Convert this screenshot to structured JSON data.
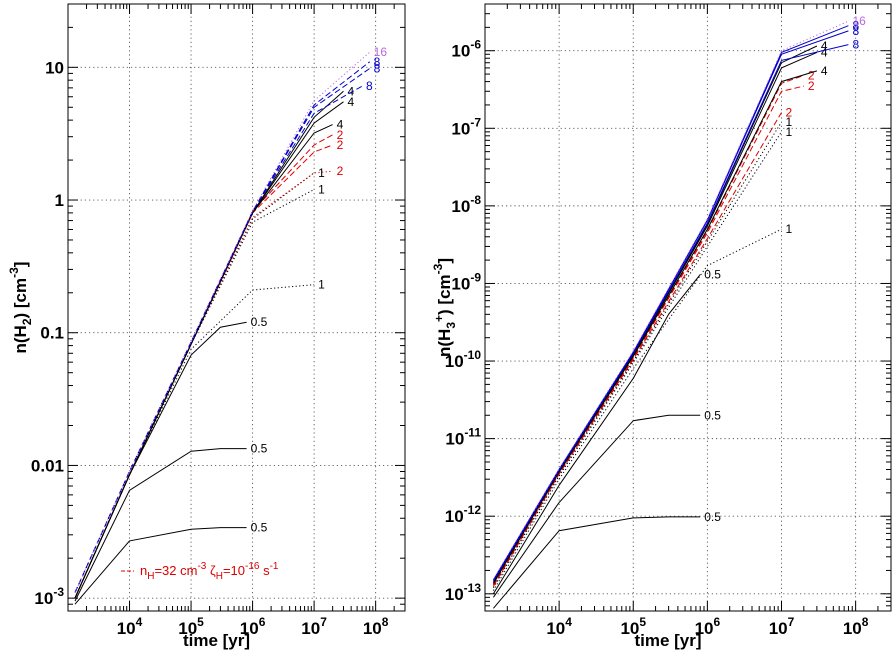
{
  "chart_data": [
    {
      "type": "line",
      "xlabel": "time [yr]",
      "ylabel": "n(H2) [cm-3]",
      "ylabel_parts": {
        "pre": "n(H",
        "sub": "2",
        "post": ") [cm",
        "sup": "-3",
        "end": "]"
      },
      "xscale": "log",
      "yscale": "log",
      "xlim": [
        1000,
        300000000
      ],
      "ylim": [
        0.0008,
        30
      ],
      "grid": true,
      "x_ticks": [
        {
          "base": "10",
          "exp": "4",
          "value": 10000
        },
        {
          "base": "10",
          "exp": "5",
          "value": 100000
        },
        {
          "base": "10",
          "exp": "6",
          "value": 1000000
        },
        {
          "base": "10",
          "exp": "7",
          "value": 10000000
        },
        {
          "base": "10",
          "exp": "8",
          "value": 100000000
        }
      ],
      "y_ticks": [
        {
          "label": "10",
          "value": 10
        },
        {
          "label": "1",
          "value": 1
        },
        {
          "label": "0.1",
          "value": 0.1
        },
        {
          "label": "0.01",
          "value": 0.01
        },
        {
          "base": "10",
          "exp": "-3",
          "value": 0.001
        }
      ],
      "annotation": {
        "pre": "n",
        "sub1": "H",
        "mid": "=32 cm",
        "sup1": "-3",
        "zeta": " ζ",
        "sub2": "H",
        "mid2": "=10",
        "sup2": "-16",
        "end": " s",
        "sup3": "-1",
        "color": "#dd0000"
      },
      "series": [
        {
          "label": "0.5",
          "label_color": "#000000",
          "color": "#000000",
          "style": "solid",
          "x": [
            1300,
            10000,
            100000,
            300000,
            800000
          ],
          "y": [
            0.0009,
            0.0027,
            0.0033,
            0.0034,
            0.0034
          ]
        },
        {
          "label": "0.5",
          "label_color": "#000000",
          "color": "#000000",
          "style": "solid",
          "x": [
            1300,
            10000,
            100000,
            300000,
            800000
          ],
          "y": [
            0.00095,
            0.0065,
            0.0128,
            0.0134,
            0.0134
          ]
        },
        {
          "label": "0.5",
          "label_color": "#000000",
          "color": "#000000",
          "style": "solid",
          "x": [
            1300,
            10000,
            100000,
            300000,
            800000
          ],
          "y": [
            0.001,
            0.0085,
            0.068,
            0.11,
            0.12
          ]
        },
        {
          "label": "1",
          "label_color": "#000000",
          "color": "#000000",
          "style": "dotted",
          "x": [
            1300,
            10000,
            100000,
            1000000,
            10000000
          ],
          "y": [
            0.001,
            0.0085,
            0.075,
            0.21,
            0.23
          ]
        },
        {
          "label": "1",
          "label_color": "#000000",
          "color": "#000000",
          "style": "dotted",
          "x": [
            1300,
            10000,
            100000,
            1000000,
            10000000
          ],
          "y": [
            0.001,
            0.0085,
            0.082,
            0.68,
            1.2
          ]
        },
        {
          "label": "1",
          "label_color": "#000000",
          "color": "#000000",
          "style": "dotted",
          "x": [
            1300,
            10000,
            100000,
            1000000,
            10000000
          ],
          "y": [
            0.001,
            0.0085,
            0.082,
            0.72,
            1.6
          ]
        },
        {
          "label": "2",
          "label_color": "#dd0000",
          "color": "#dd0000",
          "style": "dotted",
          "x": [
            1300,
            10000,
            100000,
            1000000,
            10000000,
            20000000
          ],
          "y": [
            0.001,
            0.0085,
            0.082,
            0.74,
            1.6,
            1.65
          ]
        },
        {
          "label": "2",
          "label_color": "#dd0000",
          "color": "#dd0000",
          "style": "dashed",
          "x": [
            1300,
            10000,
            100000,
            1000000,
            10000000,
            20000000
          ],
          "y": [
            0.001,
            0.0085,
            0.082,
            0.8,
            2.3,
            2.6
          ]
        },
        {
          "label": "2",
          "label_color": "#dd0000",
          "color": "#dd0000",
          "style": "dashed",
          "x": [
            1300,
            10000,
            100000,
            1000000,
            10000000,
            20000000
          ],
          "y": [
            0.001,
            0.0085,
            0.082,
            0.82,
            2.6,
            3.1
          ]
        },
        {
          "label": "4",
          "label_color": "#000000",
          "color": "#000000",
          "style": "solid",
          "x": [
            1300,
            10000,
            100000,
            1000000,
            10000000,
            20000000
          ],
          "y": [
            0.001,
            0.0085,
            0.082,
            0.8,
            3.2,
            3.7
          ]
        },
        {
          "label": "4",
          "label_color": "#000000",
          "color": "#000000",
          "style": "solid",
          "x": [
            1300,
            10000,
            100000,
            1000000,
            10000000,
            30000000
          ],
          "y": [
            0.001,
            0.0085,
            0.082,
            0.8,
            3.8,
            5.5
          ]
        },
        {
          "label": "4",
          "label_color": "#000000",
          "color": "#000000",
          "style": "solid",
          "x": [
            1300,
            10000,
            100000,
            1000000,
            10000000,
            30000000
          ],
          "y": [
            0.001,
            0.0085,
            0.082,
            0.8,
            4.2,
            6.6
          ]
        },
        {
          "label": "8",
          "label_color": "#0000cc",
          "color": "#0000cc",
          "style": "dashed",
          "x": [
            1300,
            10000,
            100000,
            1000000,
            10000000,
            60000000
          ],
          "y": [
            0.0011,
            0.009,
            0.085,
            0.82,
            4.5,
            7.2
          ]
        },
        {
          "label": "8",
          "label_color": "#0000cc",
          "color": "#0000cc",
          "style": "dashed",
          "x": [
            1300,
            10000,
            100000,
            1000000,
            10000000,
            80000000
          ],
          "y": [
            0.0011,
            0.009,
            0.085,
            0.82,
            5.0,
            9.8
          ]
        },
        {
          "label": "8",
          "label_color": "#0000cc",
          "color": "#0000cc",
          "style": "dashed",
          "x": [
            1300,
            10000,
            100000,
            1000000,
            10000000,
            80000000
          ],
          "y": [
            0.0011,
            0.009,
            0.085,
            0.82,
            5.2,
            11
          ]
        },
        {
          "label": "16",
          "label_color": "#bb66dd",
          "color": "#bb66dd",
          "style": "dotted",
          "x": [
            1300,
            10000,
            100000,
            1000000,
            10000000,
            80000000
          ],
          "y": [
            0.0011,
            0.009,
            0.086,
            0.83,
            5.6,
            13
          ]
        }
      ]
    },
    {
      "type": "line",
      "xlabel": "time [yr]",
      "ylabel": "n(H3+) [cm-3]",
      "ylabel_parts": {
        "pre": "n(H",
        "sub": "3",
        "sup0": "+",
        "post": ") [cm",
        "sup": "-3",
        "end": "]"
      },
      "xscale": "log",
      "yscale": "log",
      "xlim": [
        1000,
        300000000
      ],
      "ylim": [
        6e-14,
        4e-06
      ],
      "grid": true,
      "x_ticks": [
        {
          "base": "10",
          "exp": "4",
          "value": 10000
        },
        {
          "base": "10",
          "exp": "5",
          "value": 100000
        },
        {
          "base": "10",
          "exp": "6",
          "value": 1000000
        },
        {
          "base": "10",
          "exp": "7",
          "value": 10000000
        },
        {
          "base": "10",
          "exp": "8",
          "value": 100000000
        }
      ],
      "y_ticks": [
        {
          "base": "10",
          "exp": "-6",
          "value": 1e-06
        },
        {
          "base": "10",
          "exp": "-7",
          "value": 1e-07
        },
        {
          "base": "10",
          "exp": "-8",
          "value": 1e-08
        },
        {
          "base": "10",
          "exp": "-9",
          "value": 1e-09
        },
        {
          "base": "10",
          "exp": "-10",
          "value": 1e-10
        },
        {
          "base": "10",
          "exp": "-11",
          "value": 1e-11
        },
        {
          "base": "10",
          "exp": "-12",
          "value": 1e-12
        },
        {
          "base": "10",
          "exp": "-13",
          "value": 1e-13
        }
      ],
      "series": [
        {
          "label": "0.5",
          "label_color": "#000000",
          "color": "#000000",
          "style": "solid",
          "x": [
            1300,
            10000,
            100000,
            300000,
            800000
          ],
          "y": [
            6.5e-14,
            6.5e-13,
            9.5e-13,
            9.8e-13,
            9.8e-13
          ]
        },
        {
          "label": "0.5",
          "label_color": "#000000",
          "color": "#000000",
          "style": "solid",
          "x": [
            1300,
            10000,
            100000,
            300000,
            800000
          ],
          "y": [
            9e-14,
            1.5e-12,
            1.7e-11,
            2e-11,
            2e-11
          ]
        },
        {
          "label": "0.5",
          "label_color": "#000000",
          "color": "#000000",
          "style": "solid",
          "x": [
            1300,
            10000,
            100000,
            300000,
            800000
          ],
          "y": [
            1e-13,
            2.5e-12,
            6e-11,
            4e-10,
            1.3e-09
          ]
        },
        {
          "label": "1",
          "label_color": "#000000",
          "color": "#000000",
          "style": "dotted",
          "x": [
            1300,
            10000,
            100000,
            1000000,
            10000000
          ],
          "y": [
            1.1e-13,
            3e-12,
            8e-11,
            1.7e-09,
            5e-09
          ]
        },
        {
          "label": "1",
          "label_color": "#000000",
          "color": "#000000",
          "style": "dotted",
          "x": [
            1300,
            10000,
            100000,
            1000000,
            10000000
          ],
          "y": [
            1.2e-13,
            3.3e-12,
            9.5e-11,
            3e-09,
            9e-08
          ]
        },
        {
          "label": "1",
          "label_color": "#000000",
          "color": "#000000",
          "style": "dotted",
          "x": [
            1300,
            10000,
            100000,
            1000000,
            10000000
          ],
          "y": [
            1.2e-13,
            3.4e-12,
            1e-10,
            3.5e-09,
            1.2e-07
          ]
        },
        {
          "label": "2",
          "label_color": "#dd0000",
          "color": "#dd0000",
          "style": "dashed",
          "x": [
            1300,
            10000,
            100000,
            1000000,
            10000000
          ],
          "y": [
            1.25e-13,
            3.5e-12,
            1.05e-10,
            3.8e-09,
            1.6e-07
          ]
        },
        {
          "label": "2",
          "label_color": "#dd0000",
          "color": "#dd0000",
          "style": "dashed",
          "x": [
            1300,
            10000,
            100000,
            1000000,
            10000000,
            20000000
          ],
          "y": [
            1.3e-13,
            3.6e-12,
            1.1e-10,
            4.5e-09,
            3e-07,
            3.5e-07
          ]
        },
        {
          "label": "2",
          "label_color": "#dd0000",
          "color": "#dd0000",
          "style": "dashed",
          "x": [
            1300,
            10000,
            100000,
            1000000,
            10000000,
            20000000
          ],
          "y": [
            1.3e-13,
            3.6e-12,
            1.1e-10,
            4.8e-09,
            3.8e-07,
            4.8e-07
          ]
        },
        {
          "label": "4",
          "label_color": "#000000",
          "color": "#000000",
          "style": "solid",
          "x": [
            1300,
            10000,
            100000,
            1000000,
            10000000,
            30000000
          ],
          "y": [
            1.35e-13,
            3.7e-12,
            1.15e-10,
            5e-09,
            4e-07,
            5.5e-07
          ]
        },
        {
          "label": "4",
          "label_color": "#000000",
          "color": "#000000",
          "style": "solid",
          "x": [
            1300,
            10000,
            100000,
            1000000,
            10000000,
            30000000
          ],
          "y": [
            1.4e-13,
            3.8e-12,
            1.2e-10,
            5.5e-09,
            6e-07,
            9.5e-07
          ]
        },
        {
          "label": "4",
          "label_color": "#000000",
          "color": "#000000",
          "style": "solid",
          "x": [
            1300,
            10000,
            100000,
            1000000,
            10000000,
            30000000
          ],
          "y": [
            1.4e-13,
            3.8e-12,
            1.2e-10,
            5.8e-09,
            7e-07,
            1.15e-06
          ]
        },
        {
          "label": "8",
          "label_color": "#0000cc",
          "color": "#0000cc",
          "style": "solid",
          "x": [
            1300,
            10000,
            100000,
            1000000,
            10000000,
            80000000
          ],
          "y": [
            1.45e-13,
            3.9e-12,
            1.25e-10,
            6e-09,
            7.5e-07,
            1.2e-06
          ]
        },
        {
          "label": "8",
          "label_color": "#0000cc",
          "color": "#0000cc",
          "style": "solid",
          "x": [
            1300,
            10000,
            100000,
            1000000,
            10000000,
            80000000
          ],
          "y": [
            1.5e-13,
            4e-12,
            1.3e-10,
            6.5e-09,
            9e-07,
            1.8e-06
          ]
        },
        {
          "label": "8",
          "label_color": "#0000cc",
          "color": "#0000cc",
          "style": "solid",
          "x": [
            1300,
            10000,
            100000,
            1000000,
            10000000,
            80000000
          ],
          "y": [
            1.5e-13,
            4e-12,
            1.3e-10,
            6.6e-09,
            9.5e-07,
            2.1e-06
          ]
        },
        {
          "label": "16",
          "label_color": "#bb66dd",
          "color": "#bb66dd",
          "style": "dotted",
          "x": [
            1300,
            10000,
            100000,
            1000000,
            10000000,
            80000000
          ],
          "y": [
            1.55e-13,
            4.1e-12,
            1.35e-10,
            6.8e-09,
            1e-06,
            2.4e-06
          ]
        }
      ]
    }
  ]
}
